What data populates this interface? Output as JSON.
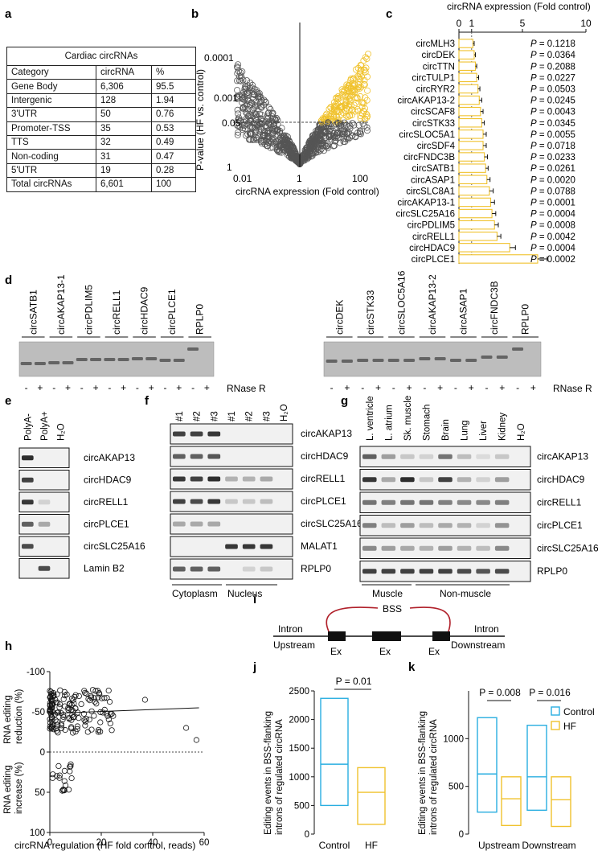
{
  "panel_labels": {
    "a": "a",
    "b": "b",
    "c": "c",
    "d": "d",
    "e": "e",
    "f": "f",
    "g": "g",
    "h": "h",
    "i": "i",
    "j": "j",
    "k": "k"
  },
  "panel_a": {
    "title": "Cardiac circRNAs",
    "header": [
      "Category",
      "circRNA",
      "%"
    ],
    "rows": [
      [
        "Gene Body",
        "6,306",
        "95.5"
      ],
      [
        "Intergenic",
        "128",
        "1.94"
      ],
      [
        "3'UTR",
        "50",
        "0.76"
      ],
      [
        "Promoter-TSS",
        "35",
        "0.53"
      ],
      [
        "TTS",
        "32",
        "0.49"
      ],
      [
        "Non-coding",
        "31",
        "0.47"
      ],
      [
        "5'UTR",
        "19",
        "0.28"
      ],
      [
        "Total circRNAs",
        "6,601",
        "100"
      ]
    ]
  },
  "chart_data": [
    {
      "panel": "b",
      "type": "scatter",
      "ylabel": "P-value (HF vs. control)",
      "xlabel": "circRNA expression (Fold control)",
      "xscale": "log",
      "yscale": "log-reversed",
      "x_tick_labels": [
        "0.01",
        "1",
        "100"
      ],
      "y_tick_labels": [
        "0.0001",
        "0.001",
        "0.05",
        "1"
      ],
      "threshold_p": 0.05,
      "colors": {
        "nonsig": "#555555",
        "sig": "#f0c22d"
      }
    },
    {
      "panel": "c",
      "type": "bar",
      "orientation": "horizontal",
      "xlabel": "circRNA expression (Fold control)",
      "xlim": [
        0,
        10
      ],
      "x_tick_labels": [
        "0",
        "1",
        "5",
        "10"
      ],
      "reference_line": 1,
      "bar_color": "#f0c22d",
      "categories": [
        "circMLH3",
        "circDEK",
        "circTTN",
        "circTULP1",
        "circRYR2",
        "circAKAP13-2",
        "circSCAF8",
        "circSTK33",
        "circSLOC5A1",
        "circSDF4",
        "circFNDC3B",
        "circSATB1",
        "circASAP1",
        "circSLC8A1",
        "circAKAP13-1",
        "circSLC25A16",
        "circPDLIM5",
        "circRELL1",
        "circHDAC9",
        "circPLCE1"
      ],
      "values": [
        1.1,
        1.2,
        1.3,
        1.4,
        1.5,
        1.6,
        1.7,
        1.8,
        1.9,
        1.9,
        2.0,
        2.1,
        2.2,
        2.4,
        2.5,
        2.6,
        2.8,
        3.0,
        4.0,
        6.2
      ],
      "errors": [
        0.1,
        0.1,
        0.1,
        0.15,
        0.15,
        0.2,
        0.2,
        0.2,
        0.25,
        0.25,
        0.25,
        0.2,
        0.25,
        0.3,
        0.3,
        0.3,
        0.3,
        0.3,
        0.45,
        0.75
      ],
      "pvalues": [
        "0.1218",
        "0.0364",
        "0.2088",
        "0.0227",
        "0.0503",
        "0.0245",
        "0.0043",
        "0.0345",
        "0.0055",
        "0.0718",
        "0.0233",
        "0.0261",
        "0.0020",
        "0.0788",
        "0.0001",
        "0.0004",
        "0.0008",
        "0.0042",
        "0.0004",
        "0.0002"
      ]
    },
    {
      "panel": "h",
      "type": "scatter",
      "xlabel": "circRNA regulation (HF fold control, reads)",
      "ylabel_top": [
        "RNA editing",
        "reduction (%)"
      ],
      "ylabel_bottom": [
        "RNA editing",
        "increase (%)"
      ],
      "xlim": [
        0,
        60
      ],
      "ylim": [
        -100,
        100
      ],
      "x_tick_labels": [
        "0",
        "20",
        "40",
        "60"
      ],
      "y_tick_labels": [
        "-100",
        "-50",
        "0",
        "50",
        "100"
      ],
      "trend": {
        "x": [
          0,
          58
        ],
        "y": [
          -48,
          -55
        ]
      }
    },
    {
      "panel": "j",
      "type": "box",
      "ylabel": [
        "Editing events in BSS-flanking",
        "introns of regulated circRNA"
      ],
      "ylim": [
        0,
        2500
      ],
      "y_ticks": [
        0,
        500,
        1000,
        1500,
        2000,
        2500
      ],
      "categories": [
        "Control",
        "HF"
      ],
      "boxes": [
        {
          "min": 500,
          "median": 1220,
          "max": 2370,
          "color": "#29aee0"
        },
        {
          "min": 170,
          "median": 730,
          "max": 1160,
          "color": "#f0c22d"
        }
      ],
      "pvalue_label": "P = 0.01"
    },
    {
      "panel": "k",
      "type": "box",
      "ylabel": [
        "Editing events in BSS-flanking",
        "introns of regulated circRNA"
      ],
      "ylim": [
        0,
        1500
      ],
      "y_ticks": [
        0,
        500,
        1000
      ],
      "groups": [
        "Upstream",
        "Downstream"
      ],
      "legend": [
        "Control",
        "HF"
      ],
      "legend_position": "top-right",
      "boxes": [
        {
          "group": "Upstream",
          "series": "Control",
          "min": 230,
          "median": 630,
          "max": 1220,
          "color": "#29aee0"
        },
        {
          "group": "Upstream",
          "series": "HF",
          "min": 90,
          "median": 370,
          "max": 600,
          "color": "#f0c22d"
        },
        {
          "group": "Downstream",
          "series": "Control",
          "min": 250,
          "median": 600,
          "max": 1140,
          "color": "#29aee0"
        },
        {
          "group": "Downstream",
          "series": "HF",
          "min": 80,
          "median": 360,
          "max": 600,
          "color": "#f0c22d"
        }
      ],
      "pvalue_labels": [
        "P = 0.008",
        "P = 0.016"
      ]
    }
  ],
  "panel_d": {
    "left_lanes": [
      "circSATB1",
      "circAKAP13-1",
      "circPDLIM5",
      "circRELL1",
      "circHDAC9",
      "circPLCE1",
      "RPLP0"
    ],
    "right_lanes": [
      "circDEK",
      "circSTK33",
      "circSLOC5A16",
      "circAKAP13-2",
      "circASAP1",
      "circFNDC3B",
      "RPLP0"
    ],
    "signs": [
      "-",
      "+"
    ],
    "treatment": "RNase R"
  },
  "panel_e": {
    "lanes": [
      "PolyA-",
      "PolyA+",
      "H₂O"
    ],
    "rows": [
      "circAKAP13",
      "circHDAC9",
      "circRELL1",
      "circPLCE1",
      "circSLC25A16",
      "Lamin B2"
    ]
  },
  "panel_f": {
    "lanes": [
      "#1",
      "#2",
      "#3",
      "#1",
      "#2",
      "#3",
      "H₂O"
    ],
    "rows": [
      "circAKAP13",
      "circHDAC9",
      "circRELL1",
      "circPLCE1",
      "circSLC25A16",
      "MALAT1",
      "RPLP0"
    ],
    "groups": [
      "Cytoplasm",
      "Nucleus"
    ]
  },
  "panel_g": {
    "lanes": [
      "L. ventricle",
      "L. atrium",
      "Sk. muscle",
      "Stomach",
      "Brain",
      "Lung",
      "Liver",
      "Kidney",
      "H₂O"
    ],
    "rows": [
      "circAKAP13",
      "circHDAC9",
      "circRELL1",
      "circPLCE1",
      "circSLC25A16",
      "RPLP0"
    ],
    "groups": [
      "Muscle",
      "Non-muscle"
    ]
  },
  "panel_i": {
    "bss": "BSS",
    "intron_left": "Intron",
    "intron_right": "Intron",
    "upstream": "Upstream",
    "downstream": "Downstream",
    "exons": [
      "Ex",
      "Ex",
      "Ex"
    ]
  }
}
